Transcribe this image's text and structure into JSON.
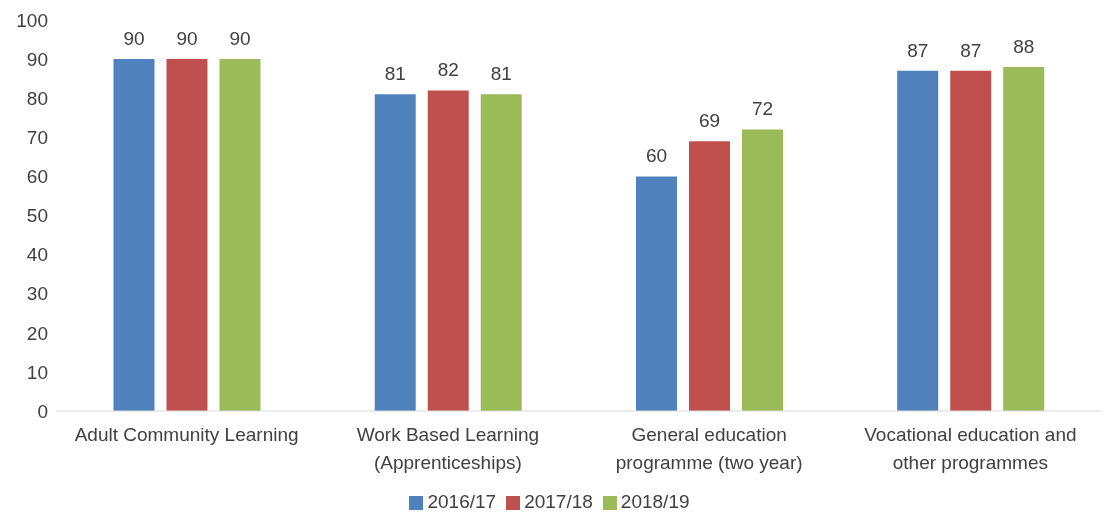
{
  "chart_data": {
    "type": "bar",
    "categories": [
      "Adult Community Learning",
      "Work Based Learning (Apprenticeships)",
      "General education programme (two year)",
      "Vocational education and other programmes"
    ],
    "series": [
      {
        "name": "2016/17",
        "color": "#4f81bd",
        "values": [
          90,
          81,
          60,
          87
        ]
      },
      {
        "name": "2017/18",
        "color": "#c0504d",
        "values": [
          90,
          82,
          69,
          87
        ]
      },
      {
        "name": "2018/19",
        "color": "#9bbb59",
        "values": [
          90,
          81,
          72,
          88
        ]
      }
    ],
    "ylim": [
      0,
      100
    ],
    "yticks": [
      0,
      10,
      20,
      30,
      40,
      50,
      60,
      70,
      80,
      90,
      100
    ],
    "data_labels": true,
    "legend": "bottom",
    "grid": false
  }
}
